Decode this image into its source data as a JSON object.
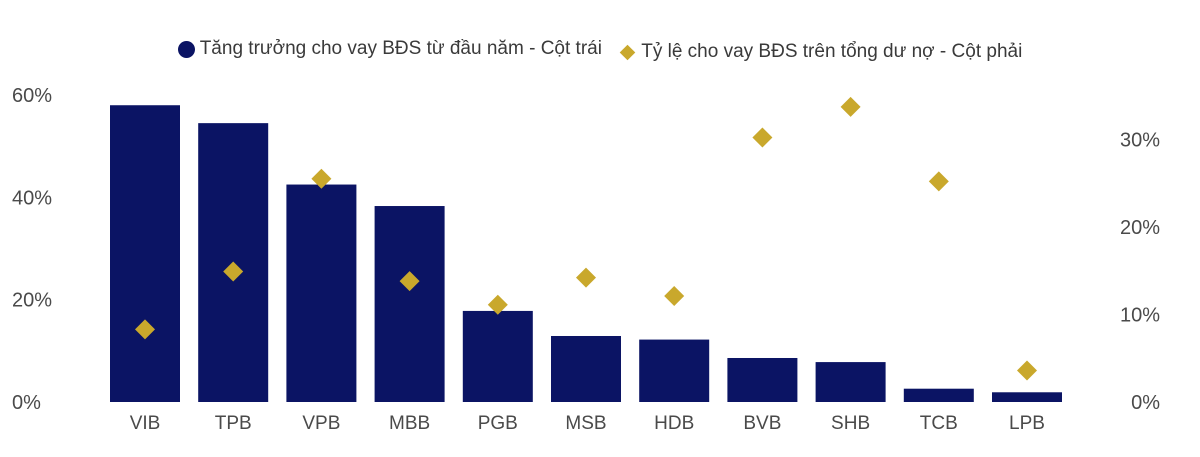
{
  "chart_data": {
    "type": "bar",
    "categories": [
      "VIB",
      "TPB",
      "VPB",
      "MBB",
      "PGB",
      "MSB",
      "HDB",
      "BVB",
      "SHB",
      "TCB",
      "LPB"
    ],
    "series": [
      {
        "name": "Tăng trưởng cho vay BĐS từ đầu năm - Cột trái",
        "type": "bar",
        "axis": "left",
        "color": "#0b1464",
        "values": [
          58,
          54.5,
          42.5,
          38.3,
          17.8,
          12.9,
          12.2,
          8.6,
          7.8,
          2.6,
          1.9
        ]
      },
      {
        "name": "Tỷ lệ cho vay BĐS trên tổng dư nợ - Cột phải",
        "type": "scatter",
        "marker": "diamond",
        "axis": "right",
        "color": "#c9a82c",
        "values": [
          8.3,
          14.9,
          25.5,
          13.8,
          11.1,
          14.2,
          12.1,
          30.2,
          33.7,
          25.2,
          3.6
        ]
      }
    ],
    "y_left": {
      "ylim": [
        0,
        60
      ],
      "ticks": [
        "0%",
        "20%",
        "40%",
        "60%"
      ]
    },
    "y_right": {
      "ylim": [
        0,
        35
      ],
      "ticks": [
        "0%",
        "10%",
        "20%",
        "30%"
      ]
    },
    "legend_position": "top-center",
    "grid": false
  }
}
